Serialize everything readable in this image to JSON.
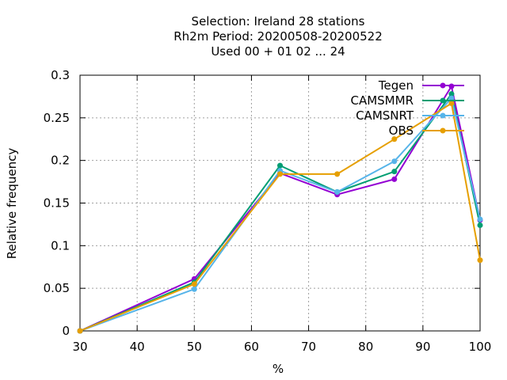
{
  "chart_data": {
    "type": "line",
    "title_lines": [
      "Selection: Ireland      28 stations",
      "Rh2m  Period: 20200508-20200522",
      "Used  00 + 01 02 ... 24"
    ],
    "xlabel": "%",
    "ylabel": "Relative frequency",
    "xlim": [
      30,
      100
    ],
    "ylim": [
      0,
      0.3
    ],
    "xticks": [
      30,
      40,
      50,
      60,
      70,
      80,
      90,
      100
    ],
    "yticks": [
      0,
      0.05,
      0.1,
      0.15,
      0.2,
      0.25,
      0.3
    ],
    "ytick_labels": [
      "0",
      "0.05",
      "0.1",
      "0.15",
      "0.2",
      "0.25",
      "0.3"
    ],
    "grid": true,
    "legend_position": "top-right",
    "x": [
      30,
      50,
      65,
      75,
      85,
      95,
      100
    ],
    "series": [
      {
        "name": "Tegen",
        "color": "#9400d3",
        "values": [
          0,
          0.061,
          0.185,
          0.16,
          0.178,
          0.287,
          0.13
        ]
      },
      {
        "name": "CAMSMMR",
        "color": "#009e73",
        "values": [
          0,
          0.057,
          0.194,
          0.163,
          0.187,
          0.278,
          0.124
        ]
      },
      {
        "name": "CAMSNRT",
        "color": "#56b4e9",
        "values": [
          0,
          0.049,
          0.188,
          0.163,
          0.199,
          0.273,
          0.131
        ]
      },
      {
        "name": "OBS",
        "color": "#e69f00",
        "values": [
          0,
          0.055,
          0.184,
          0.184,
          0.225,
          0.267,
          0.083
        ]
      }
    ]
  }
}
